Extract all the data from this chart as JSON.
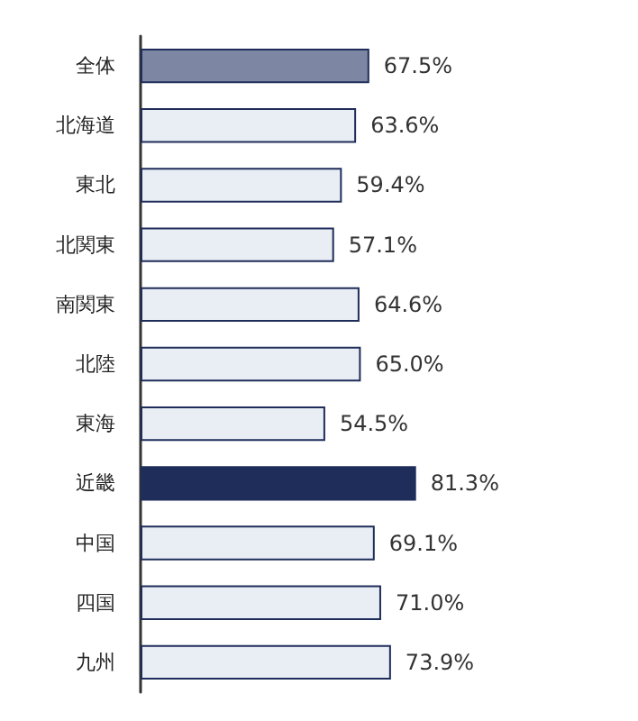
{
  "chart_data": {
    "type": "bar",
    "orientation": "horizontal",
    "categories": [
      "全体",
      "北海道",
      "東北",
      "北関東",
      "南関東",
      "北陸",
      "東海",
      "近畿",
      "中国",
      "四国",
      "九州"
    ],
    "values": [
      67.5,
      63.6,
      59.4,
      57.1,
      64.6,
      65.0,
      54.5,
      81.3,
      69.1,
      71.0,
      73.9
    ],
    "value_labels": [
      "67.5%",
      "63.6%",
      "59.4%",
      "57.1%",
      "64.6%",
      "65.0%",
      "54.5%",
      "81.3%",
      "69.1%",
      "71.0%",
      "73.9%"
    ],
    "colors": [
      "#7d87a3",
      "#e9edf4",
      "#e9edf4",
      "#e9edf4",
      "#e9edf4",
      "#e9edf4",
      "#e9edf4",
      "#1f2d5a",
      "#e9edf4",
      "#e9edf4",
      "#e9edf4"
    ],
    "grid": false
  }
}
